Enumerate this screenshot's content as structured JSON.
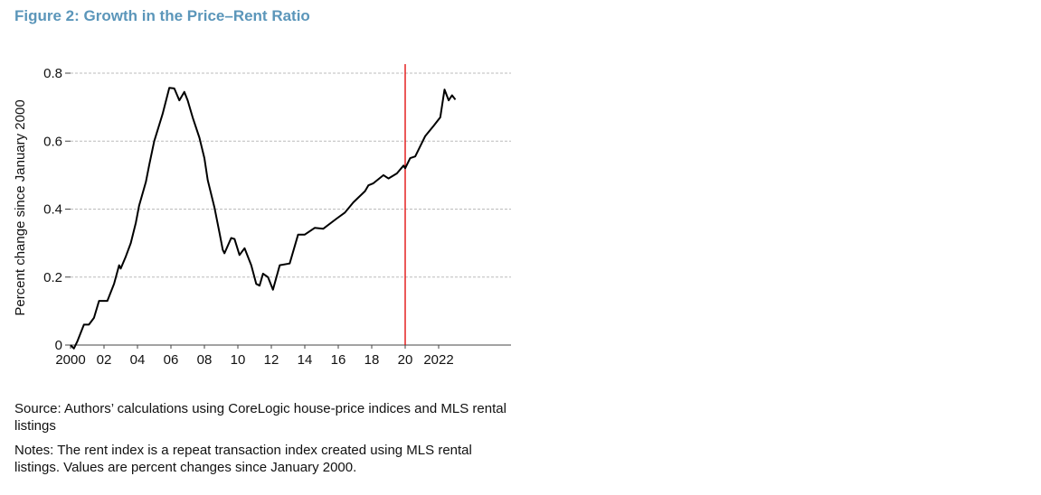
{
  "title": "Figure 2: Growth in the Price–Rent Ratio",
  "chart_data": {
    "type": "line",
    "title": "",
    "xlabel": "",
    "ylabel": "Percent change since January 2000",
    "xlim": [
      2000,
      2023.3
    ],
    "ylim": [
      0,
      0.8
    ],
    "grid": "horizontal dashed",
    "x_ticks": [
      {
        "v": 2000,
        "label": "2000"
      },
      {
        "v": 2002,
        "label": "02"
      },
      {
        "v": 2004,
        "label": "04"
      },
      {
        "v": 2006,
        "label": "06"
      },
      {
        "v": 2008,
        "label": "08"
      },
      {
        "v": 2010,
        "label": "10"
      },
      {
        "v": 2012,
        "label": "12"
      },
      {
        "v": 2014,
        "label": "14"
      },
      {
        "v": 2016,
        "label": "16"
      },
      {
        "v": 2018,
        "label": "18"
      },
      {
        "v": 2020,
        "label": "20"
      },
      {
        "v": 2022,
        "label": "2022"
      }
    ],
    "y_ticks": [
      {
        "v": 0,
        "label": "0"
      },
      {
        "v": 0.2,
        "label": "0.2"
      },
      {
        "v": 0.4,
        "label": "0.4"
      },
      {
        "v": 0.6,
        "label": "0.6"
      },
      {
        "v": 0.8,
        "label": "0.8"
      }
    ],
    "vertical_marker": {
      "x": 2020,
      "color": "#e00000"
    },
    "series": [
      {
        "color": "#000000",
        "points": [
          [
            2000.0,
            0
          ],
          [
            2000.2,
            -0.01
          ],
          [
            2000.4,
            0.01
          ],
          [
            2000.8,
            0.06
          ],
          [
            2001.1,
            0.06
          ],
          [
            2001.4,
            0.08
          ],
          [
            2001.7,
            0.13
          ],
          [
            2002.2,
            0.13
          ],
          [
            2002.6,
            0.18
          ],
          [
            2002.9,
            0.235
          ],
          [
            2003.0,
            0.225
          ],
          [
            2003.3,
            0.26
          ],
          [
            2003.6,
            0.3
          ],
          [
            2003.9,
            0.36
          ],
          [
            2004.1,
            0.41
          ],
          [
            2004.5,
            0.48
          ],
          [
            2004.7,
            0.53
          ],
          [
            2005.0,
            0.6
          ],
          [
            2005.5,
            0.68
          ],
          [
            2005.9,
            0.757
          ],
          [
            2006.2,
            0.755
          ],
          [
            2006.5,
            0.72
          ],
          [
            2006.8,
            0.745
          ],
          [
            2007.0,
            0.72
          ],
          [
            2007.3,
            0.67
          ],
          [
            2007.7,
            0.61
          ],
          [
            2008.0,
            0.55
          ],
          [
            2008.2,
            0.485
          ],
          [
            2008.6,
            0.405
          ],
          [
            2008.9,
            0.33
          ],
          [
            2009.1,
            0.28
          ],
          [
            2009.2,
            0.27
          ],
          [
            2009.6,
            0.315
          ],
          [
            2009.8,
            0.312
          ],
          [
            2010.1,
            0.265
          ],
          [
            2010.4,
            0.285
          ],
          [
            2010.8,
            0.235
          ],
          [
            2011.1,
            0.18
          ],
          [
            2011.3,
            0.175
          ],
          [
            2011.5,
            0.21
          ],
          [
            2011.8,
            0.2
          ],
          [
            2012.1,
            0.163
          ],
          [
            2012.5,
            0.235
          ],
          [
            2013.1,
            0.24
          ],
          [
            2013.6,
            0.325
          ],
          [
            2014.0,
            0.325
          ],
          [
            2014.6,
            0.345
          ],
          [
            2015.1,
            0.342
          ],
          [
            2015.9,
            0.372
          ],
          [
            2016.4,
            0.39
          ],
          [
            2016.9,
            0.42
          ],
          [
            2017.6,
            0.453
          ],
          [
            2017.8,
            0.47
          ],
          [
            2018.1,
            0.476
          ],
          [
            2018.7,
            0.5
          ],
          [
            2019.0,
            0.49
          ],
          [
            2019.5,
            0.505
          ],
          [
            2019.9,
            0.528
          ],
          [
            2020.0,
            0.52
          ],
          [
            2020.3,
            0.55
          ],
          [
            2020.6,
            0.555
          ],
          [
            2021.2,
            0.615
          ],
          [
            2021.7,
            0.645
          ],
          [
            2022.1,
            0.67
          ],
          [
            2022.35,
            0.752
          ],
          [
            2022.6,
            0.72
          ],
          [
            2022.8,
            0.735
          ],
          [
            2023.0,
            0.722
          ]
        ]
      }
    ]
  },
  "source": "Source: Authors’ calculations using CoreLogic house-price indices and MLS rental listings",
  "notes": "Notes: The rent index is a repeat transaction index created using MLS rental listings. Values are percent changes since January 2000."
}
